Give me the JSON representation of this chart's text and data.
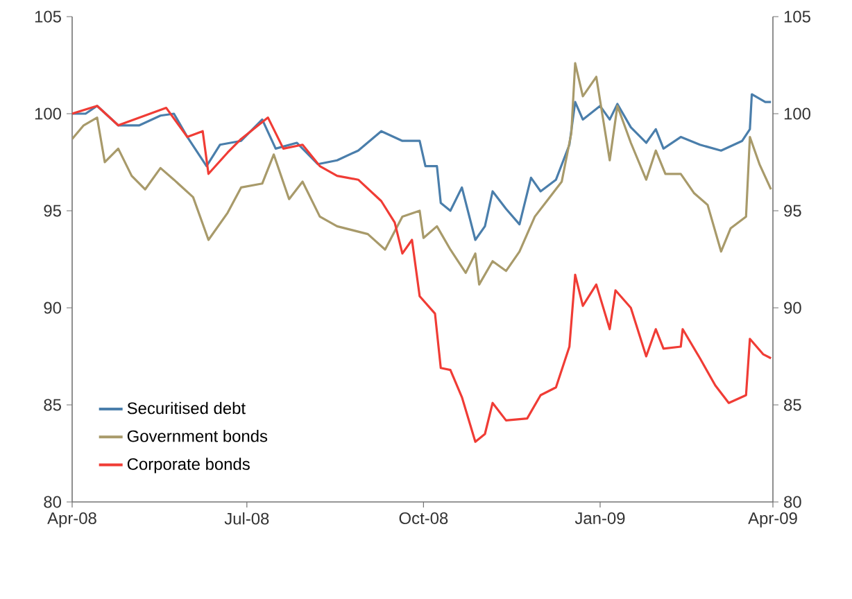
{
  "chart_data": {
    "type": "line",
    "xlim": [
      "2008-04-01",
      "2009-04-01"
    ],
    "xticks": [
      {
        "value": "2008-04-01",
        "label": "Apr-08"
      },
      {
        "value": "2008-07-01",
        "label": "Jul-08"
      },
      {
        "value": "2008-10-01",
        "label": "Oct-08"
      },
      {
        "value": "2009-01-01",
        "label": "Jan-09"
      },
      {
        "value": "2009-04-01",
        "label": "Apr-09"
      }
    ],
    "ylim": [
      80,
      105
    ],
    "yticks": [
      80,
      85,
      90,
      95,
      100,
      105
    ],
    "y2lim": [
      80,
      105
    ],
    "y2ticks": [
      80,
      85,
      90,
      95,
      100,
      105
    ],
    "grid": false,
    "legend": "bottom left",
    "line_style": "solid",
    "marker": "none",
    "series": [
      {
        "name": "Securitised debt",
        "color": "#4a7eab",
        "x": [
          "2008-04-01",
          "2008-04-08",
          "2008-04-14",
          "2008-04-25",
          "2008-05-06",
          "2008-05-17",
          "2008-05-24",
          "2008-05-31",
          "2008-06-10",
          "2008-06-17",
          "2008-06-28",
          "2008-07-09",
          "2008-07-16",
          "2008-07-27",
          "2008-08-07",
          "2008-08-17",
          "2008-08-28",
          "2008-09-09",
          "2008-09-20",
          "2008-09-29",
          "2008-10-02",
          "2008-10-08",
          "2008-10-10",
          "2008-10-15",
          "2008-10-21",
          "2008-10-28",
          "2008-11-02",
          "2008-11-06",
          "2008-11-13",
          "2008-11-20",
          "2008-11-26",
          "2008-12-01",
          "2008-12-09",
          "2008-12-16",
          "2008-12-19",
          "2008-12-23",
          "2009-01-01",
          "2009-01-06",
          "2009-01-10",
          "2009-01-17",
          "2009-01-25",
          "2009-01-30",
          "2009-02-03",
          "2009-02-12",
          "2009-02-22",
          "2009-03-05",
          "2009-03-16",
          "2009-03-20",
          "2009-03-21",
          "2009-03-28",
          "2009-03-31"
        ],
        "values": [
          100.0,
          100.0,
          100.4,
          99.4,
          99.4,
          99.9,
          100.0,
          98.8,
          97.3,
          98.4,
          98.6,
          99.7,
          98.2,
          98.5,
          97.4,
          97.6,
          98.1,
          99.1,
          98.6,
          98.6,
          97.3,
          97.3,
          95.4,
          95.0,
          96.2,
          93.5,
          94.2,
          96.0,
          95.1,
          94.3,
          96.7,
          96.0,
          96.6,
          98.4,
          100.6,
          99.7,
          100.4,
          99.7,
          100.5,
          99.3,
          98.5,
          99.2,
          98.2,
          98.8,
          98.4,
          98.1,
          98.6,
          99.2,
          101.0,
          100.6,
          100.6
        ]
      },
      {
        "name": "Government bonds",
        "color": "#a89a6a",
        "x": [
          "2008-04-01",
          "2008-04-07",
          "2008-04-14",
          "2008-04-18",
          "2008-04-25",
          "2008-05-02",
          "2008-05-09",
          "2008-05-17",
          "2008-05-24",
          "2008-06-03",
          "2008-06-11",
          "2008-06-21",
          "2008-06-28",
          "2008-07-09",
          "2008-07-15",
          "2008-07-23",
          "2008-07-30",
          "2008-08-08",
          "2008-08-17",
          "2008-09-02",
          "2008-09-11",
          "2008-09-20",
          "2008-09-29",
          "2008-10-01",
          "2008-10-08",
          "2008-10-15",
          "2008-10-23",
          "2008-10-28",
          "2008-10-30",
          "2008-11-06",
          "2008-11-13",
          "2008-11-20",
          "2008-11-28",
          "2008-12-05",
          "2008-12-12",
          "2008-12-17",
          "2008-12-19",
          "2008-12-23",
          "2008-12-30",
          "2009-01-06",
          "2009-01-10",
          "2009-01-17",
          "2009-01-25",
          "2009-01-30",
          "2009-02-04",
          "2009-02-12",
          "2009-02-19",
          "2009-02-26",
          "2009-03-05",
          "2009-03-10",
          "2009-03-18",
          "2009-03-20",
          "2009-03-25",
          "2009-03-31"
        ],
        "values": [
          98.7,
          99.4,
          99.8,
          97.5,
          98.2,
          96.8,
          96.1,
          97.2,
          96.6,
          95.7,
          93.5,
          94.9,
          96.2,
          96.4,
          97.9,
          95.6,
          96.5,
          94.7,
          94.2,
          93.8,
          93.0,
          94.7,
          95.0,
          93.6,
          94.2,
          93.0,
          91.8,
          92.8,
          91.2,
          92.4,
          91.9,
          92.9,
          94.7,
          95.6,
          96.5,
          99.0,
          102.6,
          100.9,
          101.9,
          97.6,
          100.4,
          98.5,
          96.6,
          98.1,
          96.9,
          96.9,
          95.9,
          95.3,
          92.9,
          94.1,
          94.7,
          98.8,
          97.4,
          96.1
        ]
      },
      {
        "name": "Corporate bonds",
        "color": "#f03c35",
        "x": [
          "2008-04-01",
          "2008-04-14",
          "2008-04-25",
          "2008-05-20",
          "2008-05-31",
          "2008-06-08",
          "2008-06-11",
          "2008-06-21",
          "2008-06-28",
          "2008-07-12",
          "2008-07-20",
          "2008-07-30",
          "2008-08-08",
          "2008-08-17",
          "2008-08-28",
          "2008-09-09",
          "2008-09-16",
          "2008-09-20",
          "2008-09-25",
          "2008-09-29",
          "2008-10-07",
          "2008-10-10",
          "2008-10-15",
          "2008-10-21",
          "2008-10-28",
          "2008-11-02",
          "2008-11-06",
          "2008-11-13",
          "2008-11-24",
          "2008-12-01",
          "2008-12-09",
          "2008-12-16",
          "2008-12-19",
          "2008-12-23",
          "2008-12-30",
          "2009-01-06",
          "2009-01-09",
          "2009-01-17",
          "2009-01-25",
          "2009-01-30",
          "2009-02-03",
          "2009-02-12",
          "2009-02-13",
          "2009-02-22",
          "2009-03-02",
          "2009-03-09",
          "2009-03-18",
          "2009-03-20",
          "2009-03-27",
          "2009-03-31"
        ],
        "values": [
          100.0,
          100.4,
          99.4,
          100.3,
          98.8,
          99.1,
          96.9,
          98.0,
          98.7,
          99.8,
          98.2,
          98.4,
          97.3,
          96.8,
          96.6,
          95.5,
          94.4,
          92.8,
          93.5,
          90.6,
          89.7,
          86.9,
          86.8,
          85.4,
          83.1,
          83.5,
          85.1,
          84.2,
          84.3,
          85.5,
          85.9,
          88.0,
          91.7,
          90.1,
          91.2,
          88.9,
          90.9,
          90.0,
          87.5,
          88.9,
          87.9,
          88.0,
          88.9,
          87.4,
          86.0,
          85.1,
          85.5,
          88.4,
          87.6,
          87.4
        ]
      }
    ]
  }
}
